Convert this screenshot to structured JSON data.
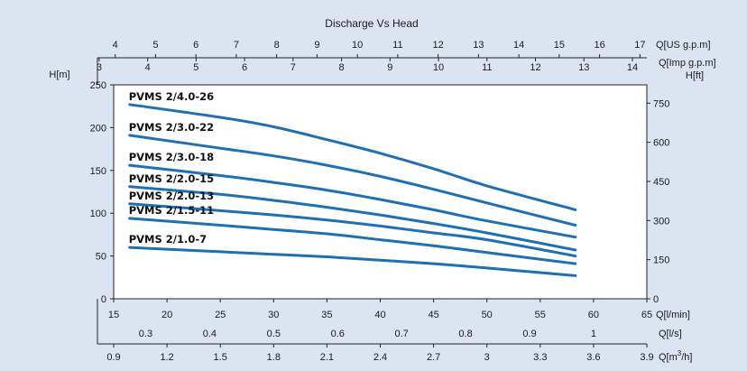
{
  "chart_data": {
    "type": "line",
    "title": "Discharge Vs Head",
    "background_color": "#dbe5f1",
    "plot_background_color": "#ffffff",
    "series_color": "#1f6fb5",
    "grid": false,
    "xlabel": "Q[l/min]",
    "x_ticks": [
      15,
      20,
      25,
      30,
      35,
      40,
      45,
      50,
      55,
      60,
      65
    ],
    "xlim": [
      15,
      65
    ],
    "ylabel_left": "H[m]",
    "y_ticks_left": [
      0,
      50,
      100,
      150,
      200,
      250
    ],
    "ylim": [
      0,
      250
    ],
    "ylabel_right": "H[ft]",
    "y_ticks_right": [
      0,
      150,
      300,
      450,
      600,
      750
    ],
    "secondary_axes": {
      "us_gpm": {
        "label": "Q[US g.p.m]",
        "ticks": [
          4,
          5,
          6,
          7,
          8,
          9,
          10,
          11,
          12,
          13,
          14,
          15,
          16,
          17
        ]
      },
      "imp_gpm": {
        "label": "Q[Imp g.p.m]",
        "ticks": [
          3,
          4,
          5,
          6,
          7,
          8,
          9,
          10,
          11,
          12,
          13,
          14
        ]
      },
      "l_per_s": {
        "label": "Q[l/s]",
        "ticks": [
          "0.3",
          "0.4",
          "0.5",
          "0.6",
          "0.7",
          "0.8",
          "0.9",
          "1"
        ]
      },
      "m3_per_h": {
        "label_prefix": "Q[m",
        "label_sup": "3",
        "label_suffix": "/h]",
        "ticks": [
          "0.9",
          "1.2",
          "1.5",
          "1.8",
          "2.1",
          "2.4",
          "2.7",
          "3",
          "3.3",
          "3.6",
          "3.9"
        ]
      }
    },
    "x": [
      16.5,
      25,
      30,
      35,
      40,
      45,
      50,
      58.3
    ],
    "series": [
      {
        "name": "PVMS 2/4.0-26",
        "values": [
          227,
          212,
          201,
          186,
          170,
          152,
          132,
          104
        ]
      },
      {
        "name": "PVMS 2/3.0-22",
        "values": [
          191,
          176,
          167,
          156,
          143,
          128,
          112,
          86
        ]
      },
      {
        "name": "PVMS 2/3.0-18",
        "values": [
          156,
          144,
          136,
          127,
          116,
          104,
          91,
          72
        ]
      },
      {
        "name": "PVMS 2/2.0-15",
        "values": [
          131,
          122,
          115,
          107,
          98,
          88,
          77,
          57
        ]
      },
      {
        "name": "PVMS 2/2.0-13",
        "values": [
          111,
          103,
          98,
          92,
          85,
          77,
          69,
          50
        ]
      },
      {
        "name": "PVMS 2/1.5-11",
        "values": [
          94,
          86,
          81,
          76,
          69,
          62,
          54,
          41
        ]
      },
      {
        "name": "PVMS 2/1.0-7",
        "values": [
          60,
          55,
          52,
          49,
          45,
          41,
          36,
          27
        ]
      }
    ]
  }
}
